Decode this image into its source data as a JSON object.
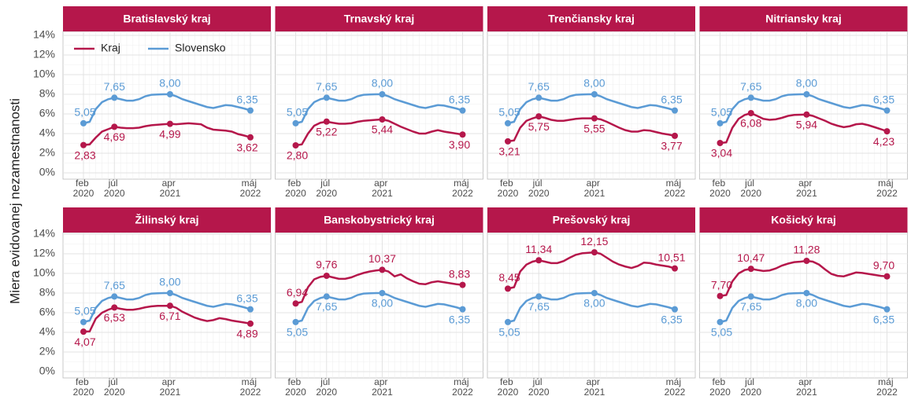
{
  "chart_data": {
    "type": "line",
    "y_label": "Miera evidovanej nezamestnanosti",
    "x": [
      "2020-02",
      "2020-03",
      "2020-04",
      "2020-05",
      "2020-06",
      "2020-07",
      "2020-08",
      "2020-09",
      "2020-10",
      "2020-11",
      "2020-12",
      "2021-01",
      "2021-02",
      "2021-03",
      "2021-04",
      "2021-05",
      "2021-06",
      "2021-07",
      "2021-08",
      "2021-09",
      "2021-10",
      "2021-11",
      "2021-12",
      "2022-01",
      "2022-02",
      "2022-03",
      "2022-04",
      "2022-05"
    ],
    "xticks": [
      {
        "value": "2020-02",
        "label": "feb 2020"
      },
      {
        "value": "2020-07",
        "label": "júl 2020"
      },
      {
        "value": "2021-04",
        "label": "apr 2021"
      },
      {
        "value": "2022-05",
        "label": "máj 2022"
      }
    ],
    "ylim": [
      0,
      14
    ],
    "yticks": [
      {
        "value": 0,
        "label": "0%"
      },
      {
        "value": 2,
        "label": "2%"
      },
      {
        "value": 4,
        "label": "4%"
      },
      {
        "value": 6,
        "label": "6%"
      },
      {
        "value": 8,
        "label": "8%"
      },
      {
        "value": 10,
        "label": "10%"
      },
      {
        "value": 12,
        "label": "12%"
      },
      {
        "value": 14,
        "label": "14%"
      }
    ],
    "grid": true,
    "legend": "top-left",
    "series": [
      {
        "name": "Kraj",
        "color": "#b5174b"
      },
      {
        "name": "Slovensko",
        "color": "#5b9bd5",
        "values": [
          5.05,
          5.2,
          6.5,
          7.2,
          7.5,
          7.65,
          7.5,
          7.35,
          7.35,
          7.5,
          7.8,
          7.95,
          7.98,
          8.0,
          8.0,
          7.8,
          7.5,
          7.3,
          7.1,
          6.9,
          6.7,
          6.6,
          6.75,
          6.9,
          6.85,
          6.7,
          6.55,
          6.35
        ],
        "value_labels": [
          "5,05",
          null,
          null,
          null,
          null,
          "7,65",
          null,
          null,
          null,
          null,
          null,
          null,
          null,
          null,
          "8,00",
          null,
          null,
          null,
          null,
          null,
          null,
          null,
          null,
          null,
          null,
          null,
          null,
          "6,35"
        ]
      }
    ],
    "panels": [
      {
        "title": "Bratislavský kraj",
        "values": [
          2.83,
          2.9,
          3.6,
          4.2,
          4.45,
          4.69,
          4.6,
          4.55,
          4.55,
          4.6,
          4.75,
          4.85,
          4.9,
          4.95,
          4.99,
          4.95,
          5.0,
          5.05,
          5.0,
          4.95,
          4.6,
          4.4,
          4.35,
          4.3,
          4.2,
          3.95,
          3.8,
          3.62
        ],
        "value_labels": [
          "2,83",
          null,
          null,
          null,
          null,
          "4,69",
          null,
          null,
          null,
          null,
          null,
          null,
          null,
          null,
          "4,99",
          null,
          null,
          null,
          null,
          null,
          null,
          null,
          null,
          null,
          null,
          null,
          null,
          "3,62"
        ]
      },
      {
        "title": "Trnavský kraj",
        "values": [
          2.8,
          2.9,
          4.0,
          4.8,
          5.1,
          5.22,
          5.1,
          5.0,
          5.0,
          5.05,
          5.2,
          5.3,
          5.35,
          5.4,
          5.44,
          5.3,
          5.0,
          4.7,
          4.45,
          4.2,
          4.0,
          4.0,
          4.2,
          4.35,
          4.2,
          4.1,
          4.0,
          3.9
        ],
        "value_labels": [
          "2,80",
          null,
          null,
          null,
          null,
          "5,22",
          null,
          null,
          null,
          null,
          null,
          null,
          null,
          null,
          "5,44",
          null,
          null,
          null,
          null,
          null,
          null,
          null,
          null,
          null,
          null,
          null,
          null,
          "3,90"
        ]
      },
      {
        "title": "Trenčiansky kraj",
        "values": [
          3.21,
          3.3,
          4.6,
          5.3,
          5.55,
          5.75,
          5.6,
          5.4,
          5.3,
          5.3,
          5.4,
          5.5,
          5.55,
          5.55,
          5.55,
          5.45,
          5.2,
          4.9,
          4.6,
          4.35,
          4.2,
          4.2,
          4.35,
          4.3,
          4.15,
          4.0,
          3.9,
          3.77
        ],
        "value_labels": [
          "3,21",
          null,
          null,
          null,
          null,
          "5,75",
          null,
          null,
          null,
          null,
          null,
          null,
          null,
          null,
          "5,55",
          null,
          null,
          null,
          null,
          null,
          null,
          null,
          null,
          null,
          null,
          null,
          null,
          "3,77"
        ]
      },
      {
        "title": "Nitriansky kraj",
        "values": [
          3.04,
          3.1,
          4.6,
          5.5,
          5.9,
          6.08,
          5.8,
          5.5,
          5.4,
          5.45,
          5.6,
          5.8,
          5.9,
          5.92,
          5.94,
          5.8,
          5.55,
          5.3,
          5.0,
          4.8,
          4.65,
          4.75,
          4.95,
          5.0,
          4.85,
          4.65,
          4.45,
          4.23
        ],
        "value_labels": [
          "3,04",
          null,
          null,
          null,
          null,
          "6,08",
          null,
          null,
          null,
          null,
          null,
          null,
          null,
          null,
          "5,94",
          null,
          null,
          null,
          null,
          null,
          null,
          null,
          null,
          null,
          null,
          null,
          null,
          "4,23"
        ]
      },
      {
        "title": "Žilinský kraj",
        "values": [
          4.07,
          4.1,
          5.4,
          6.0,
          6.3,
          6.53,
          6.4,
          6.3,
          6.3,
          6.4,
          6.55,
          6.65,
          6.7,
          6.7,
          6.71,
          6.5,
          6.1,
          5.8,
          5.5,
          5.3,
          5.15,
          5.25,
          5.45,
          5.35,
          5.2,
          5.1,
          5.0,
          4.89
        ],
        "value_labels": [
          "4,07",
          null,
          null,
          null,
          null,
          "6,53",
          null,
          null,
          null,
          null,
          null,
          null,
          null,
          null,
          "6,71",
          null,
          null,
          null,
          null,
          null,
          null,
          null,
          null,
          null,
          null,
          null,
          null,
          "4,89"
        ]
      },
      {
        "title": "Banskobystrický kraj",
        "values": [
          6.94,
          7.1,
          8.6,
          9.4,
          9.65,
          9.76,
          9.6,
          9.45,
          9.45,
          9.6,
          9.85,
          10.05,
          10.2,
          10.3,
          10.37,
          10.2,
          9.7,
          9.9,
          9.5,
          9.2,
          8.95,
          8.9,
          9.1,
          9.2,
          9.1,
          9.0,
          8.9,
          8.83
        ],
        "value_labels": [
          "6,94",
          null,
          null,
          null,
          null,
          "9,76",
          null,
          null,
          null,
          null,
          null,
          null,
          null,
          null,
          "10,37",
          null,
          null,
          null,
          null,
          null,
          null,
          null,
          null,
          null,
          null,
          null,
          null,
          "8,83"
        ]
      },
      {
        "title": "Prešovský kraj",
        "values": [
          8.45,
          8.6,
          10.2,
          10.9,
          11.2,
          11.34,
          11.2,
          11.05,
          11.05,
          11.25,
          11.6,
          11.9,
          12.05,
          12.1,
          12.15,
          12.0,
          11.6,
          11.2,
          10.9,
          10.7,
          10.55,
          10.75,
          11.1,
          11.05,
          10.9,
          10.8,
          10.7,
          10.51
        ],
        "value_labels": [
          "8,45",
          null,
          null,
          null,
          null,
          "11,34",
          null,
          null,
          null,
          null,
          null,
          null,
          null,
          null,
          "12,15",
          null,
          null,
          null,
          null,
          null,
          null,
          null,
          null,
          null,
          null,
          null,
          null,
          "10,51"
        ]
      },
      {
        "title": "Košický kraj",
        "values": [
          7.7,
          7.8,
          9.2,
          10.0,
          10.35,
          10.47,
          10.35,
          10.25,
          10.3,
          10.5,
          10.8,
          11.0,
          11.15,
          11.2,
          11.28,
          11.2,
          10.9,
          10.4,
          9.95,
          9.75,
          9.7,
          9.9,
          10.1,
          10.05,
          9.95,
          9.85,
          9.75,
          9.7
        ],
        "value_labels": [
          "7,70",
          null,
          null,
          null,
          null,
          "10,47",
          null,
          null,
          null,
          null,
          null,
          null,
          null,
          null,
          "11,28",
          null,
          null,
          null,
          null,
          null,
          null,
          null,
          null,
          null,
          null,
          null,
          null,
          "9,70"
        ]
      }
    ]
  }
}
